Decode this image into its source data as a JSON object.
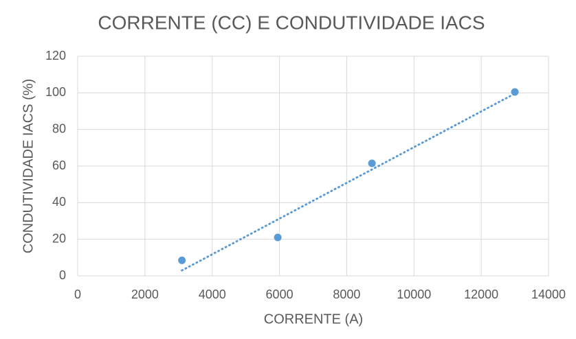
{
  "chart_data": {
    "type": "scatter",
    "title": "CORRENTE (CC) E CONDUTIVIDADE IACS",
    "x_label": "CORRENTE (A)",
    "y_label": "CONDUTIVIDADE IACS (%)",
    "series": [
      {
        "color": "#5b9bd5",
        "x": [
          3100,
          5950,
          8750,
          13000
        ],
        "values": [
          8.5,
          21,
          61.5,
          100.5
        ]
      }
    ],
    "trendline": "linear",
    "xlim": [
      0,
      14000
    ],
    "xticks": [
      0,
      2000,
      4000,
      6000,
      8000,
      10000,
      12000,
      14000
    ],
    "ylim": [
      0,
      120
    ],
    "yticks": [
      0,
      20,
      40,
      60,
      80,
      100,
      120
    ],
    "grid": true
  }
}
